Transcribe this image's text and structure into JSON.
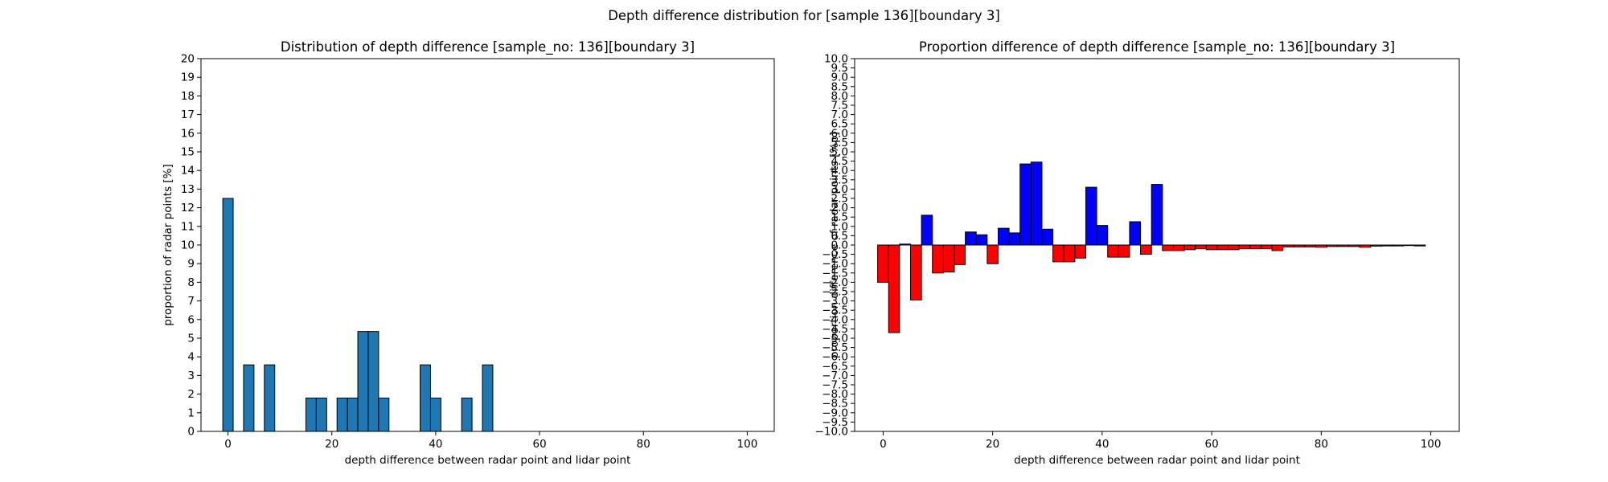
{
  "figure": {
    "suptitle": "Depth difference distribution for [sample 136][boundary 3]"
  },
  "chart_data": [
    {
      "type": "bar",
      "title": "Distribution of depth difference [sample_no: 136][boundary 3]",
      "xlabel": "depth difference between radar point and lidar point",
      "ylabel": "proportion of radar points [%]",
      "xlim": [
        -5.2,
        105.2
      ],
      "ylim": [
        0,
        20
      ],
      "xticks": [
        0,
        20,
        40,
        60,
        80,
        100
      ],
      "yticks": [
        0,
        1,
        2,
        3,
        4,
        5,
        6,
        7,
        8,
        9,
        10,
        11,
        12,
        13,
        14,
        15,
        16,
        17,
        18,
        19,
        20
      ],
      "bin_width": 2,
      "color": "#1f77b4",
      "edgecolor": "#000000",
      "bins": [
        {
          "x": 0,
          "value": 12.5
        },
        {
          "x": 4,
          "value": 3.57
        },
        {
          "x": 8,
          "value": 3.57
        },
        {
          "x": 16,
          "value": 1.79
        },
        {
          "x": 18,
          "value": 1.79
        },
        {
          "x": 22,
          "value": 1.79
        },
        {
          "x": 24,
          "value": 1.79
        },
        {
          "x": 26,
          "value": 5.36
        },
        {
          "x": 28,
          "value": 5.36
        },
        {
          "x": 30,
          "value": 1.79
        },
        {
          "x": 38,
          "value": 3.57
        },
        {
          "x": 40,
          "value": 1.79
        },
        {
          "x": 46,
          "value": 1.79
        },
        {
          "x": 50,
          "value": 3.57
        }
      ]
    },
    {
      "type": "bar",
      "title": "Proportion difference of depth difference [sample_no: 136][boundary 3]",
      "xlabel": "depth difference between radar point and lidar point",
      "ylabel": "proportion difference of radar points [%p]",
      "xlim": [
        -5.2,
        105.2
      ],
      "ylim": [
        -10,
        10
      ],
      "xticks": [
        0,
        20,
        40,
        60,
        80,
        100
      ],
      "yticks": [
        -10,
        -9.5,
        -9,
        -8.5,
        -8,
        -7.5,
        -7,
        -6.5,
        -6,
        -5.5,
        -5,
        -4.5,
        -4,
        -3.5,
        -3,
        -2.5,
        -2,
        -1.5,
        -1,
        -0.5,
        0,
        0.5,
        1,
        1.5,
        2,
        2.5,
        3,
        3.5,
        4,
        4.5,
        5,
        5.5,
        6,
        6.5,
        7,
        7.5,
        8,
        8.5,
        9,
        9.5,
        10
      ],
      "ytick_labels": [
        "−10.0",
        "−9.5",
        "−9.0",
        "−8.5",
        "−8.0",
        "−7.5",
        "−7.0",
        "−6.5",
        "−6.0",
        "−5.5",
        "−5.0",
        "−4.5",
        "−4.0",
        "−3.5",
        "−3.0",
        "−2.5",
        "−2.0",
        "−1.5",
        "−1.0",
        "−0.5",
        "0.0",
        "0.5",
        "1.0",
        "1.5",
        "2.0",
        "2.5",
        "3.0",
        "3.5",
        "4.0",
        "4.5",
        "5.0",
        "5.5",
        "6.0",
        "6.5",
        "7.0",
        "7.5",
        "8.0",
        "8.5",
        "9.0",
        "9.5",
        "10.0"
      ],
      "bin_width": 2,
      "positive_color": "#0000ff",
      "negative_color": "#ff0000",
      "edgecolor": "#000000",
      "x": [
        0,
        2,
        4,
        6,
        8,
        10,
        12,
        14,
        16,
        18,
        20,
        22,
        24,
        26,
        28,
        30,
        32,
        34,
        36,
        38,
        40,
        42,
        44,
        46,
        48,
        50,
        52,
        54,
        56,
        58,
        60,
        62,
        64,
        66,
        68,
        70,
        72,
        74,
        76,
        78,
        80,
        82,
        84,
        86,
        88,
        90,
        92,
        94,
        96,
        98
      ],
      "values": [
        -2.0,
        -4.7,
        0.05,
        -2.95,
        1.6,
        -1.5,
        -1.45,
        -1.05,
        0.7,
        0.55,
        -1.0,
        0.9,
        0.65,
        4.35,
        4.45,
        0.85,
        -0.9,
        -0.9,
        -0.7,
        3.1,
        1.05,
        -0.65,
        -0.65,
        1.25,
        -0.5,
        3.25,
        -0.3,
        -0.3,
        -0.25,
        -0.2,
        -0.25,
        -0.25,
        -0.25,
        -0.2,
        -0.2,
        -0.2,
        -0.3,
        -0.1,
        -0.1,
        -0.1,
        -0.12,
        -0.08,
        -0.08,
        -0.08,
        -0.12,
        -0.06,
        -0.05,
        -0.05,
        -0.03,
        -0.05
      ]
    }
  ]
}
